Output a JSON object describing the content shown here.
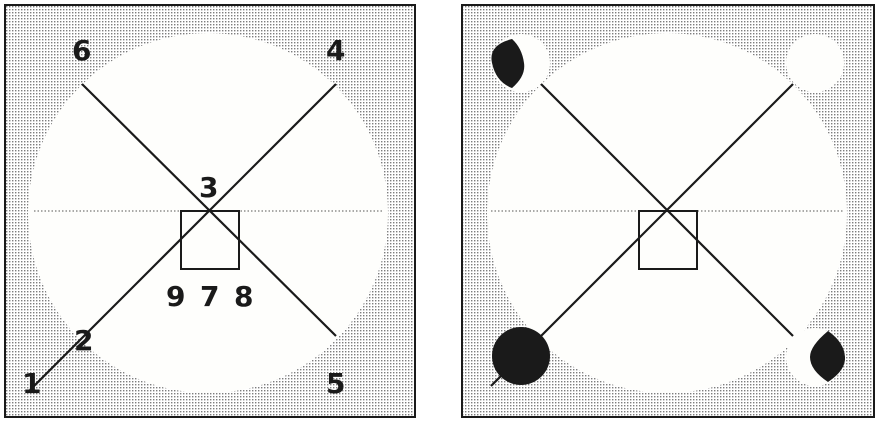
{
  "left_panel": {
    "labels": {
      "n1": "1",
      "n2": "2",
      "n3": "3",
      "n4": "4",
      "n5": "5",
      "n6": "6",
      "n7": "7",
      "n8": "8",
      "n9": "9"
    }
  },
  "colors": {
    "background_dots": "#9a9a9a",
    "panel_fill": "#fefefc",
    "ink": "#1a1a1a"
  }
}
